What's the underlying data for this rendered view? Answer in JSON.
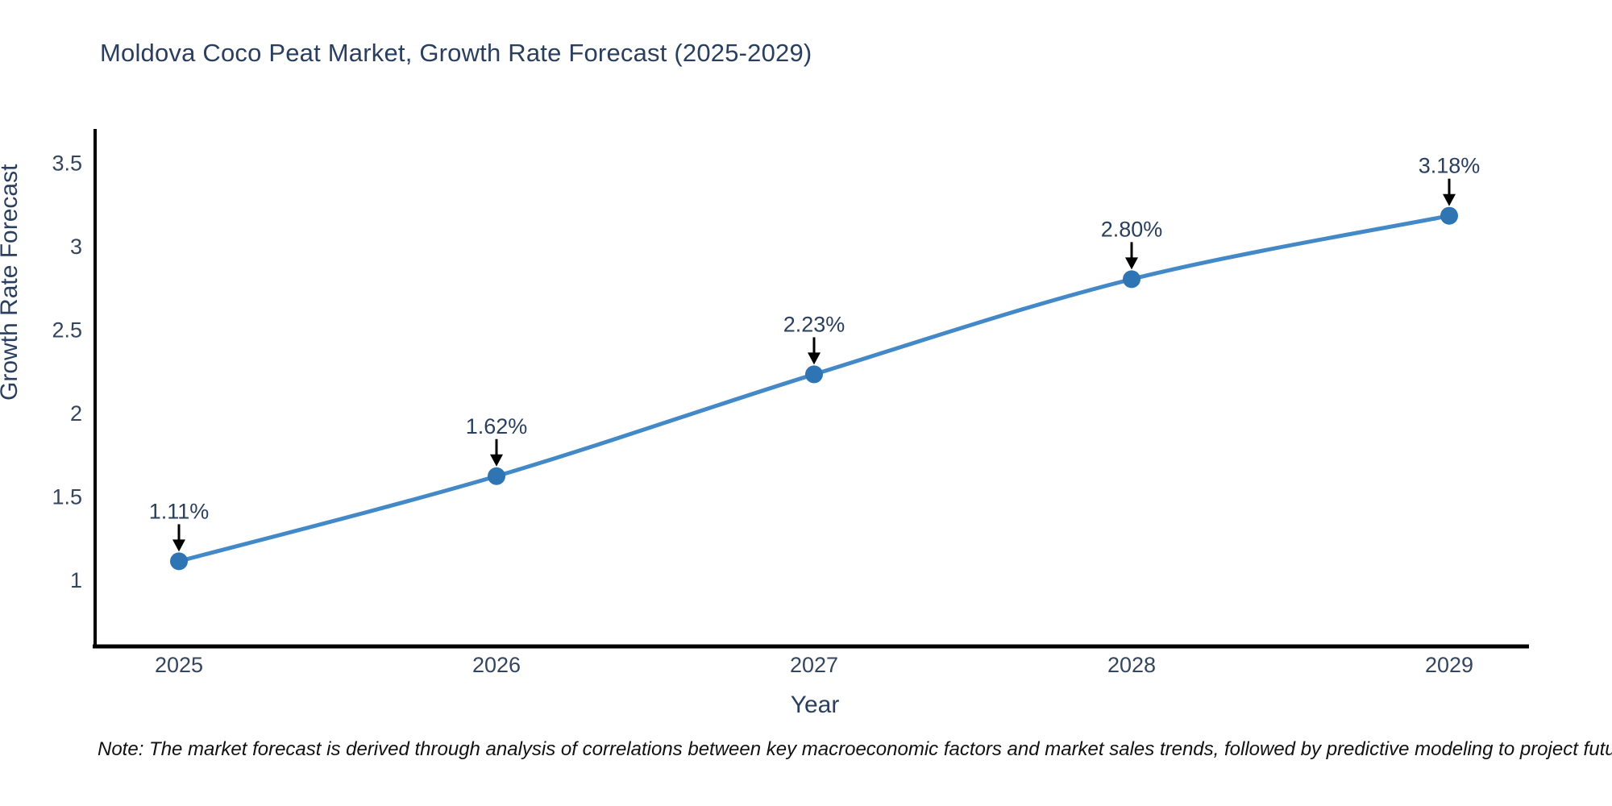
{
  "page": {
    "title": "Moldova Coco Peat Market, Growth Rate Forecast (2025-2029)",
    "note": "Note: The market forecast is derived through analysis of correlations between key macroeconomic factors and market sales trends, followed by predictive modeling to project future sales"
  },
  "chart_data": {
    "type": "line",
    "title": "Moldova Coco Peat Market, Growth Rate Forecast (2025-2029)",
    "xlabel": "Year",
    "ylabel": "Growth Rate Forecast",
    "categories": [
      "2025",
      "2026",
      "2027",
      "2028",
      "2029"
    ],
    "values": [
      1.11,
      1.62,
      2.23,
      2.8,
      3.18
    ],
    "point_labels": [
      "1.11%",
      "1.62%",
      "2.23%",
      "2.80%",
      "3.18%"
    ],
    "y_ticks": [
      1,
      1.5,
      2,
      2.5,
      3,
      3.5
    ],
    "ylim": [
      0.6,
      3.7
    ],
    "grid": false,
    "legend_position": "none",
    "line_shape": "spline",
    "line_color": "#4389c8",
    "marker_color": "#2f74b3",
    "arrow_color": "#000000",
    "annotation_color": "#2a3f5f",
    "tick_color": "#35455c",
    "axis_color": "#000000",
    "background_color": "#ffffff"
  }
}
